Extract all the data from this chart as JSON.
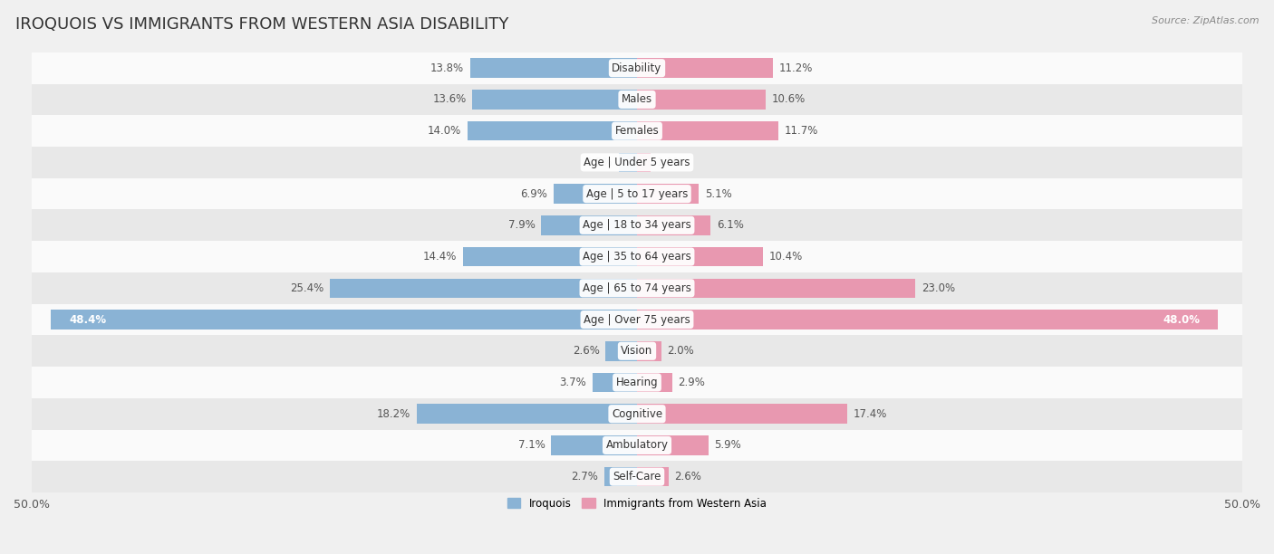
{
  "title": "IROQUOIS VS IMMIGRANTS FROM WESTERN ASIA DISABILITY",
  "source": "Source: ZipAtlas.com",
  "categories": [
    "Disability",
    "Males",
    "Females",
    "Age | Under 5 years",
    "Age | 5 to 17 years",
    "Age | 18 to 34 years",
    "Age | 35 to 64 years",
    "Age | 65 to 74 years",
    "Age | Over 75 years",
    "Vision",
    "Hearing",
    "Cognitive",
    "Ambulatory",
    "Self-Care"
  ],
  "iroquois": [
    13.8,
    13.6,
    14.0,
    1.5,
    6.9,
    7.9,
    14.4,
    25.4,
    48.4,
    2.6,
    3.7,
    18.2,
    7.1,
    2.7
  ],
  "immigrants": [
    11.2,
    10.6,
    11.7,
    1.1,
    5.1,
    6.1,
    10.4,
    23.0,
    48.0,
    2.0,
    2.9,
    17.4,
    5.9,
    2.6
  ],
  "iroquois_color": "#8ab3d5",
  "immigrants_color": "#e898b0",
  "iroquois_label": "Iroquois",
  "immigrants_label": "Immigrants from Western Asia",
  "axis_limit": 50.0,
  "background_color": "#f0f0f0",
  "row_colors": [
    "#fafafa",
    "#e8e8e8"
  ],
  "bar_height": 0.62,
  "title_fontsize": 13,
  "label_fontsize": 8.5,
  "tick_fontsize": 9,
  "value_fontsize": 8.5
}
